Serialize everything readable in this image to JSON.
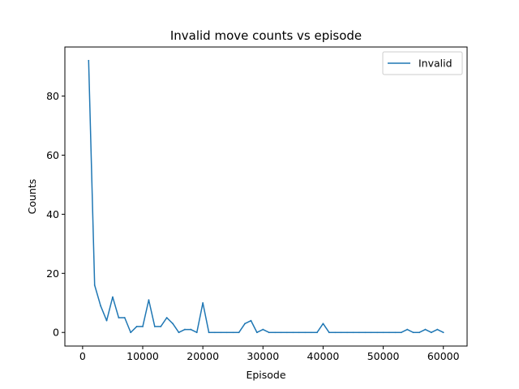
{
  "chart_data": {
    "type": "line",
    "title": "Invalid move counts vs episode",
    "xlabel": "Episode",
    "ylabel": "Counts",
    "xlim": [
      -2950,
      63950
    ],
    "ylim": [
      -4.6,
      96.6
    ],
    "xticks": [
      0,
      10000,
      20000,
      30000,
      40000,
      50000,
      60000
    ],
    "yticks": [
      0,
      20,
      40,
      60,
      80
    ],
    "grid": false,
    "legend_position": "top-right",
    "series": [
      {
        "name": "Invalid",
        "color": "#1f77b4",
        "x": [
          1000,
          2000,
          3000,
          4000,
          5000,
          6000,
          7000,
          8000,
          9000,
          10000,
          11000,
          12000,
          13000,
          14000,
          15000,
          16000,
          17000,
          18000,
          19000,
          20000,
          21000,
          22000,
          23000,
          24000,
          25000,
          26000,
          27000,
          28000,
          29000,
          30000,
          31000,
          32000,
          33000,
          34000,
          35000,
          36000,
          37000,
          38000,
          39000,
          40000,
          41000,
          42000,
          43000,
          44000,
          45000,
          46000,
          47000,
          48000,
          49000,
          50000,
          51000,
          52000,
          53000,
          54000,
          55000,
          56000,
          57000,
          58000,
          59000,
          60000
        ],
        "y": [
          92,
          16,
          9,
          4,
          12,
          5,
          5,
          0,
          2,
          2,
          11,
          2,
          2,
          5,
          3,
          0,
          1,
          1,
          0,
          10,
          0,
          0,
          0,
          0,
          0,
          0,
          3,
          4,
          0,
          1,
          0,
          0,
          0,
          0,
          0,
          0,
          0,
          0,
          0,
          3,
          0,
          0,
          0,
          0,
          0,
          0,
          0,
          0,
          0,
          0,
          0,
          0,
          0,
          1,
          0,
          0,
          1,
          0,
          1,
          0
        ]
      }
    ]
  }
}
